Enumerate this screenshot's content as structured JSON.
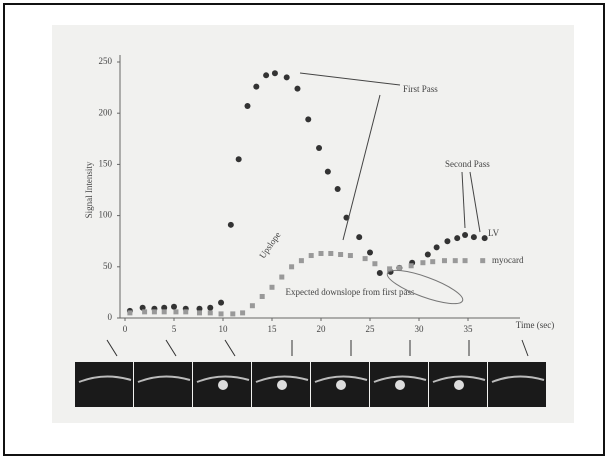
{
  "chart_data": {
    "type": "scatter",
    "y_label": "Signal Intensity",
    "x_label": "Time (sec)",
    "xlim": [
      0,
      40
    ],
    "ylim": [
      0,
      250
    ],
    "xticks": [
      0,
      5,
      10,
      15,
      20,
      25,
      30,
      35
    ],
    "yticks": [
      0,
      50,
      100,
      150,
      200,
      250
    ],
    "annotations": [
      "First Pass",
      "Second Pass",
      "LV",
      "myocard",
      "Upslope",
      "Expected downslope from first pass"
    ],
    "series": [
      {
        "name": "LV",
        "color": "#333",
        "marker": "circle",
        "x": [
          0.5,
          1.8,
          3,
          4,
          5,
          6.2,
          7.6,
          8.7,
          9.8,
          10.8,
          11.6,
          12.5,
          13.4,
          14.4,
          15.3,
          16.5,
          17.6,
          18.7,
          19.8,
          20.7,
          21.7,
          22.6,
          23.9,
          25,
          26,
          27.1,
          28,
          29.3,
          30.9,
          31.8,
          32.9,
          33.9,
          34.7,
          35.6,
          36.7
        ],
        "values": [
          7,
          10,
          9,
          10,
          11,
          9,
          9,
          10,
          15,
          91,
          155,
          207,
          226,
          237,
          239,
          235,
          224,
          194,
          166,
          143,
          126,
          98,
          79,
          64,
          44,
          45,
          49,
          54,
          62,
          69,
          75,
          78,
          81,
          79,
          78
        ]
      },
      {
        "name": "myocard",
        "color": "#999",
        "marker": "square",
        "x": [
          0.5,
          2,
          3,
          4,
          5.2,
          6.2,
          7.6,
          8.7,
          9.8,
          11,
          12,
          13,
          14,
          15,
          16,
          17,
          18,
          19,
          20,
          21,
          22,
          23,
          24.5,
          25.5,
          27,
          28,
          29.2,
          30.4,
          31.4,
          32.6,
          33.7,
          34.7,
          36.5
        ],
        "values": [
          5,
          6,
          6,
          6,
          6,
          6,
          5,
          5,
          4,
          4,
          5,
          12,
          21,
          30,
          40,
          50,
          56,
          61,
          63,
          63,
          62,
          61,
          58,
          53,
          48,
          49,
          51,
          54,
          55,
          56,
          56,
          56,
          56
        ]
      }
    ]
  }
}
